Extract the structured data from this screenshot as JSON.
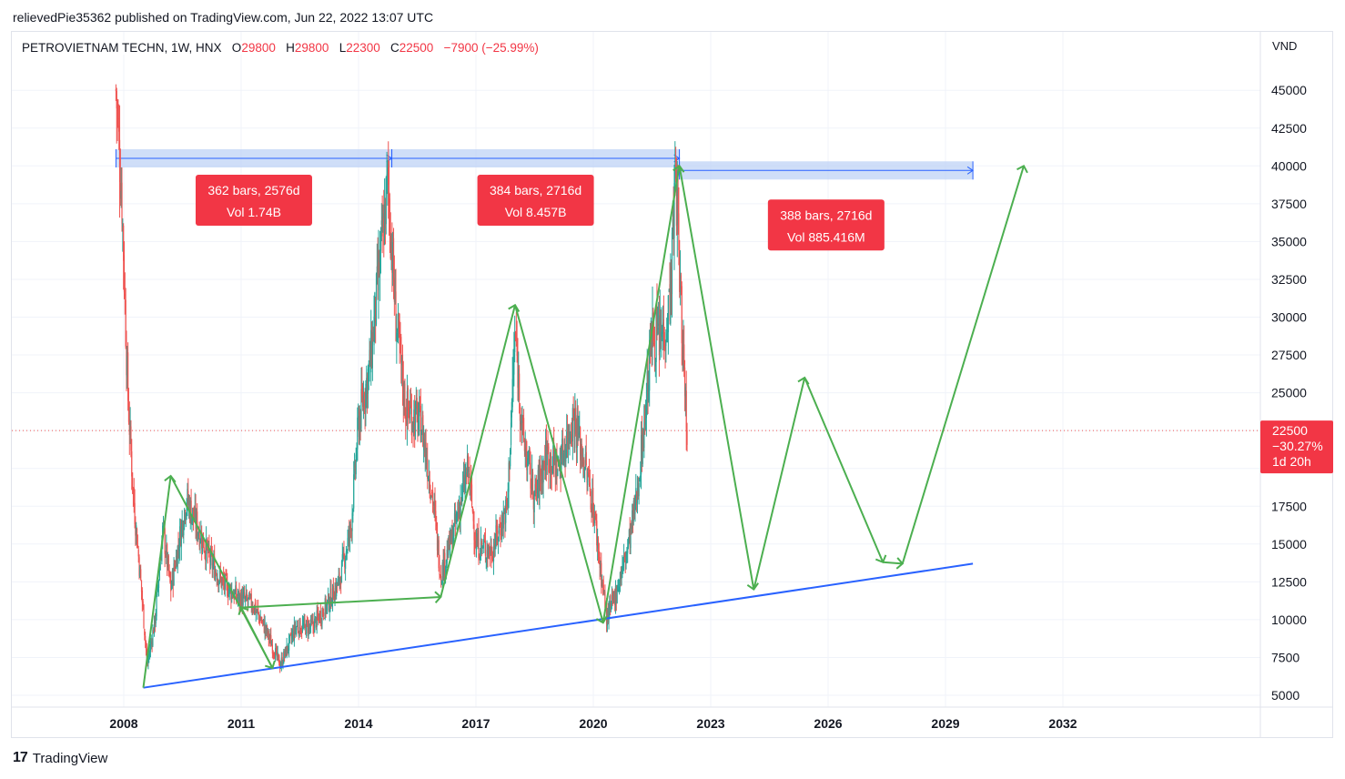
{
  "header": {
    "published": "relievedPie35362 published on TradingView.com, Jun 22, 2022 13:07 UTC"
  },
  "legend": {
    "symbol": "PETROVIETNAM TECHN, 1W, HNX",
    "o_label": "O",
    "o_value": "29800",
    "h_label": "H",
    "h_value": "29800",
    "l_label": "L",
    "l_value": "22300",
    "c_label": "C",
    "c_value": "22500",
    "change": "−7900 (−25.99%)"
  },
  "axis": {
    "currency": "VND"
  },
  "price_badge": {
    "price": "22500",
    "change": "−30.27%",
    "countdown": "1d 20h"
  },
  "footer": {
    "brand": "TradingView"
  },
  "colors": {
    "up": "#26a69a",
    "down": "#ef5350",
    "trend": "#4caf50",
    "support": "#2962ff",
    "range_box": "#bbd0f5",
    "label_bg": "#f23645"
  },
  "chart_data": {
    "type": "candlestick",
    "instrument": "PETROVIETNAM TECHN",
    "interval": "1W",
    "exchange": "HNX",
    "y_unit": "VND",
    "ylim": [
      4300,
      48500
    ],
    "x_tick_labels": [
      "2008",
      "2011",
      "2014",
      "2017",
      "2020",
      "2023",
      "2026",
      "2029",
      "2032"
    ],
    "y_tick_labels": [
      "5000",
      "7500",
      "10000",
      "12500",
      "15000",
      "17500",
      "20000",
      "22500",
      "25000",
      "27500",
      "30000",
      "32500",
      "35000",
      "37500",
      "40000",
      "42500",
      "45000"
    ],
    "last_price": 22500,
    "price_path": [
      [
        2007.8,
        45000
      ],
      [
        2007.95,
        38000
      ],
      [
        2008.1,
        25000
      ],
      [
        2008.25,
        18000
      ],
      [
        2008.45,
        12000
      ],
      [
        2008.6,
        7000
      ],
      [
        2008.8,
        10000
      ],
      [
        2009.0,
        16000
      ],
      [
        2009.2,
        12000
      ],
      [
        2009.6,
        18000
      ],
      [
        2009.9,
        16000
      ],
      [
        2010.2,
        14000
      ],
      [
        2010.5,
        12500
      ],
      [
        2010.9,
        11500
      ],
      [
        2011.3,
        11000
      ],
      [
        2011.6,
        9500
      ],
      [
        2012.0,
        7000
      ],
      [
        2012.4,
        9500
      ],
      [
        2012.8,
        9500
      ],
      [
        2013.2,
        11000
      ],
      [
        2013.5,
        12500
      ],
      [
        2013.8,
        16000
      ],
      [
        2014.0,
        23000
      ],
      [
        2014.3,
        27000
      ],
      [
        2014.6,
        35000
      ],
      [
        2014.75,
        39000
      ],
      [
        2014.95,
        30000
      ],
      [
        2015.2,
        24000
      ],
      [
        2015.6,
        23000
      ],
      [
        2015.9,
        18000
      ],
      [
        2016.1,
        13000
      ],
      [
        2016.4,
        15500
      ],
      [
        2016.8,
        20000
      ],
      [
        2017.0,
        15000
      ],
      [
        2017.4,
        14500
      ],
      [
        2017.8,
        17500
      ],
      [
        2018.0,
        29000
      ],
      [
        2018.2,
        22000
      ],
      [
        2018.5,
        18000
      ],
      [
        2018.8,
        21000
      ],
      [
        2019.1,
        20000
      ],
      [
        2019.5,
        23500
      ],
      [
        2019.8,
        20000
      ],
      [
        2020.0,
        17500
      ],
      [
        2020.2,
        13000
      ],
      [
        2020.35,
        10000
      ],
      [
        2020.6,
        12000
      ],
      [
        2020.9,
        15000
      ],
      [
        2021.1,
        18000
      ],
      [
        2021.3,
        23000
      ],
      [
        2021.5,
        29000
      ],
      [
        2021.7,
        28500
      ],
      [
        2021.9,
        30000
      ],
      [
        2022.0,
        33000
      ],
      [
        2022.1,
        40000
      ],
      [
        2022.25,
        30000
      ],
      [
        2022.4,
        22500
      ]
    ],
    "annotations": [
      {
        "label": "362 bars, 2576d",
        "volume": "Vol 1.74B",
        "from": [
          2007.8,
          40500
        ],
        "to": [
          2014.85,
          40500
        ]
      },
      {
        "label": "384 bars, 2716d",
        "volume": "Vol 8.457B",
        "from": [
          2014.85,
          40500
        ],
        "to": [
          2022.2,
          40500
        ]
      },
      {
        "label": "388 bars, 2716d",
        "volume": "Vol 885.416M",
        "from": [
          2022.2,
          39700
        ],
        "to": [
          2029.7,
          39700
        ]
      }
    ],
    "support_line": {
      "from": [
        2008.5,
        5500
      ],
      "to": [
        2029.7,
        13700
      ]
    },
    "zigzag_history": [
      [
        2008.5,
        5500
      ],
      [
        2009.2,
        19500
      ],
      [
        2011.8,
        6800
      ],
      [
        2011.0,
        10800
      ],
      [
        2016.1,
        11500
      ],
      [
        2018.0,
        30800
      ],
      [
        2020.25,
        9800
      ],
      [
        2022.2,
        40000
      ]
    ],
    "zigzag_projection": [
      [
        2022.2,
        40000
      ],
      [
        2024.1,
        12000
      ],
      [
        2025.4,
        26000
      ],
      [
        2027.4,
        13800
      ],
      [
        2027.9,
        13700
      ],
      [
        2031.0,
        40000
      ]
    ]
  }
}
